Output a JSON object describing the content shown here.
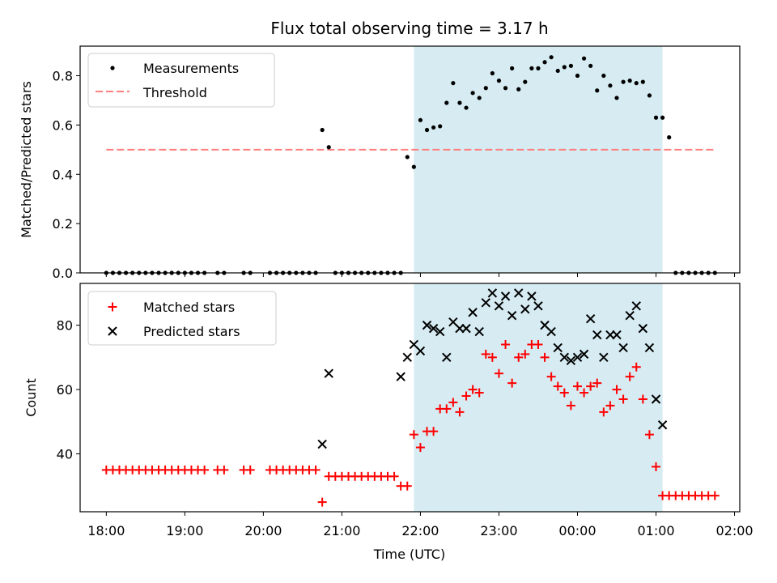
{
  "colors": {
    "measurement": "#000000",
    "threshold": "#ff7f7f",
    "matched": "#ff0000",
    "predicted": "#000000",
    "shade": "#add8e6"
  },
  "chart_data": [
    {
      "type": "scatter",
      "title": "Flux total observing time = 3.17 h",
      "xlabel": "",
      "ylabel": "Matched/Predicted stars",
      "ylim": [
        0,
        0.92
      ],
      "yticks": [
        0.0,
        0.2,
        0.4,
        0.6,
        0.8
      ],
      "ytick_labels": [
        "0.0",
        "0.2",
        "0.4",
        "0.6",
        "0.8"
      ],
      "xlim": [
        "17:40",
        "02:04"
      ],
      "shaded_span": [
        "21:55",
        "01:05"
      ],
      "legend_position": "upper left",
      "legend": [
        "Measurements",
        "Threshold"
      ],
      "threshold": {
        "name": "Threshold",
        "y": 0.5,
        "x": [
          "18:00",
          "01:45"
        ]
      },
      "series": [
        {
          "name": "Measurements",
          "x": [
            "18:00",
            "18:05",
            "18:10",
            "18:15",
            "18:20",
            "18:25",
            "18:30",
            "18:35",
            "18:40",
            "18:45",
            "18:50",
            "18:55",
            "19:00",
            "19:05",
            "19:10",
            "19:15",
            "19:25",
            "19:30",
            "19:45",
            "19:50",
            "20:05",
            "20:10",
            "20:15",
            "20:20",
            "20:25",
            "20:30",
            "20:35",
            "20:40",
            "20:45",
            "20:50",
            "20:55",
            "21:00",
            "21:05",
            "21:10",
            "21:15",
            "21:20",
            "21:25",
            "21:30",
            "21:35",
            "21:40",
            "21:45",
            "21:50",
            "21:55",
            "22:00",
            "22:05",
            "22:10",
            "22:15",
            "22:20",
            "22:25",
            "22:30",
            "22:35",
            "22:40",
            "22:45",
            "22:50",
            "22:55",
            "23:00",
            "23:05",
            "23:10",
            "23:15",
            "23:20",
            "23:25",
            "23:30",
            "23:35",
            "23:40",
            "23:45",
            "23:50",
            "23:55",
            "00:00",
            "00:05",
            "00:10",
            "00:15",
            "00:20",
            "00:25",
            "00:30",
            "00:35",
            "00:40",
            "00:45",
            "00:50",
            "00:55",
            "01:00",
            "01:05",
            "01:10",
            "01:15",
            "01:20",
            "01:25",
            "01:30",
            "01:35",
            "01:40",
            "01:45"
          ],
          "y": [
            0,
            0,
            0,
            0,
            0,
            0,
            0,
            0,
            0,
            0,
            0,
            0,
            0,
            0,
            0,
            0,
            0,
            0,
            0,
            0,
            0,
            0,
            0,
            0,
            0,
            0,
            0,
            0,
            0.58,
            0.51,
            0,
            0,
            0,
            0,
            0,
            0,
            0,
            0,
            0,
            0,
            0,
            0.47,
            0.43,
            0.62,
            0.58,
            0.59,
            0.595,
            0.69,
            0.77,
            0.69,
            0.67,
            0.73,
            0.71,
            0.75,
            0.81,
            0.78,
            0.75,
            0.83,
            0.745,
            0.775,
            0.83,
            0.83,
            0.855,
            0.875,
            0.82,
            0.835,
            0.84,
            0.8,
            0.87,
            0.84,
            0.74,
            0.8,
            0.76,
            0.71,
            0.775,
            0.78,
            0.77,
            0.775,
            0.72,
            0.63,
            0.63,
            0.55,
            0,
            0,
            0,
            0,
            0,
            0,
            0
          ]
        }
      ]
    },
    {
      "type": "scatter",
      "title": "",
      "xlabel": "Time (UTC)",
      "ylabel": "Count",
      "ylim": [
        22,
        93
      ],
      "yticks": [
        40,
        60,
        80
      ],
      "ytick_labels": [
        "40",
        "60",
        "80"
      ],
      "xlim": [
        "17:40",
        "02:04"
      ],
      "xticks": [
        "18:00",
        "19:00",
        "20:00",
        "21:00",
        "22:00",
        "23:00",
        "00:00",
        "01:00",
        "02:00"
      ],
      "shaded_span": [
        "21:55",
        "01:05"
      ],
      "legend_position": "upper left",
      "legend": [
        "Matched stars",
        "Predicted stars"
      ],
      "series": [
        {
          "name": "Matched stars",
          "marker": "+",
          "x": [
            "18:00",
            "18:05",
            "18:10",
            "18:15",
            "18:20",
            "18:25",
            "18:30",
            "18:35",
            "18:40",
            "18:45",
            "18:50",
            "18:55",
            "19:00",
            "19:05",
            "19:10",
            "19:15",
            "19:25",
            "19:30",
            "19:45",
            "19:50",
            "20:05",
            "20:10",
            "20:15",
            "20:20",
            "20:25",
            "20:30",
            "20:35",
            "20:40",
            "20:45",
            "20:50",
            "20:55",
            "21:00",
            "21:05",
            "21:10",
            "21:15",
            "21:20",
            "21:25",
            "21:30",
            "21:35",
            "21:40",
            "21:45",
            "21:50",
            "21:55",
            "22:00",
            "22:05",
            "22:10",
            "22:15",
            "22:20",
            "22:25",
            "22:30",
            "22:35",
            "22:40",
            "22:45",
            "22:50",
            "22:55",
            "23:00",
            "23:05",
            "23:10",
            "23:15",
            "23:20",
            "23:25",
            "23:30",
            "23:35",
            "23:40",
            "23:45",
            "23:50",
            "23:55",
            "00:00",
            "00:05",
            "00:10",
            "00:15",
            "00:20",
            "00:25",
            "00:30",
            "00:35",
            "00:40",
            "00:45",
            "00:50",
            "00:55",
            "01:00",
            "01:05",
            "01:10",
            "01:15",
            "01:20",
            "01:25",
            "01:30",
            "01:35",
            "01:40",
            "01:45"
          ],
          "y": [
            35,
            35,
            35,
            35,
            35,
            35,
            35,
            35,
            35,
            35,
            35,
            35,
            35,
            35,
            35,
            35,
            35,
            35,
            35,
            35,
            35,
            35,
            35,
            35,
            35,
            35,
            35,
            35,
            25,
            33,
            33,
            33,
            33,
            33,
            33,
            33,
            33,
            33,
            33,
            33,
            30,
            30,
            46,
            42,
            47,
            47,
            54,
            54,
            56,
            53,
            58,
            60,
            59,
            71,
            70,
            65,
            74,
            62,
            70,
            71,
            74,
            74,
            70,
            64,
            61,
            59,
            55,
            61,
            59,
            61,
            62,
            53,
            55,
            60,
            57,
            64,
            67,
            57,
            46,
            36,
            27,
            27,
            27,
            27,
            27,
            27,
            27,
            27,
            27
          ]
        },
        {
          "name": "Predicted stars",
          "marker": "x",
          "x": [
            "20:45",
            "20:50",
            "21:45",
            "21:50",
            "21:55",
            "22:00",
            "22:05",
            "22:10",
            "22:15",
            "22:20",
            "22:25",
            "22:30",
            "22:35",
            "22:40",
            "22:45",
            "22:50",
            "22:55",
            "23:00",
            "23:05",
            "23:10",
            "23:15",
            "23:20",
            "23:25",
            "23:30",
            "23:35",
            "23:40",
            "23:45",
            "23:50",
            "23:55",
            "00:00",
            "00:05",
            "00:10",
            "00:15",
            "00:20",
            "00:25",
            "00:30",
            "00:35",
            "00:40",
            "00:45",
            "00:50",
            "00:55",
            "01:00",
            "01:05"
          ],
          "y": [
            43,
            65,
            64,
            70,
            74,
            72,
            80,
            79,
            78,
            70,
            81,
            79,
            79,
            84,
            78,
            87,
            90,
            86,
            89,
            83,
            90,
            85,
            89,
            86,
            80,
            78,
            73,
            70,
            69,
            70,
            71,
            82,
            77,
            70,
            77,
            77,
            73,
            83,
            86,
            79,
            73,
            57,
            49
          ]
        }
      ]
    }
  ]
}
